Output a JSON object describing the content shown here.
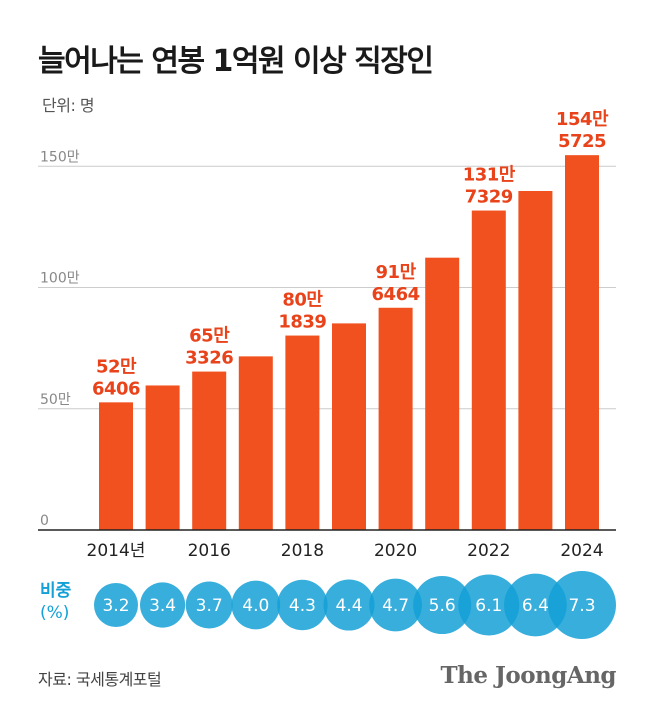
{
  "title": "늘어나는 연봉 1억원 이상 직장인",
  "unit_label": "단위: 명",
  "share_label_line1": "비중",
  "share_label_line2": "(%)",
  "source": "자료: 국세통계포털",
  "brand": "The JoongAng",
  "colors": {
    "bar": "#f0511f",
    "value_label": "#e8431a",
    "bubble": "#14a0d6",
    "grid": "#cccccc"
  },
  "chart_data": {
    "type": "bar",
    "categories": [
      "2014",
      "2015",
      "2016",
      "2017",
      "2018",
      "2019",
      "2020",
      "2021",
      "2022",
      "2023",
      "2024"
    ],
    "values": [
      526406,
      596000,
      653326,
      716000,
      801839,
      852000,
      916464,
      1123000,
      1317329,
      1398000,
      1545725
    ],
    "x_tick_labels": [
      "2014년",
      "",
      "2016",
      "",
      "2018",
      "",
      "2020",
      "",
      "2022",
      "",
      "2024"
    ],
    "data_labels": [
      {
        "index": 0,
        "line1": "52만",
        "line2": "6406"
      },
      {
        "index": 2,
        "line1": "65만",
        "line2": "3326"
      },
      {
        "index": 4,
        "line1": "80만",
        "line2": "1839"
      },
      {
        "index": 6,
        "line1": "91만",
        "line2": "6464"
      },
      {
        "index": 8,
        "line1": "131만",
        "line2": "7329"
      },
      {
        "index": 10,
        "line1": "154만",
        "line2": "5725"
      }
    ],
    "y_ticks": [
      {
        "value": 0,
        "label": "0"
      },
      {
        "value": 500000,
        "label": "50만"
      },
      {
        "value": 1000000,
        "label": "100만"
      },
      {
        "value": 1500000,
        "label": "150만"
      }
    ],
    "ylim": [
      0,
      1600000
    ],
    "share_percent": [
      3.2,
      3.4,
      3.7,
      4.0,
      4.3,
      4.4,
      4.7,
      5.6,
      6.1,
      6.4,
      7.3
    ],
    "share_percent_labels": [
      "3.2",
      "3.4",
      "3.7",
      "4.0",
      "4.3",
      "4.4",
      "4.7",
      "5.6",
      "6.1",
      "6.4",
      "7.3"
    ]
  }
}
